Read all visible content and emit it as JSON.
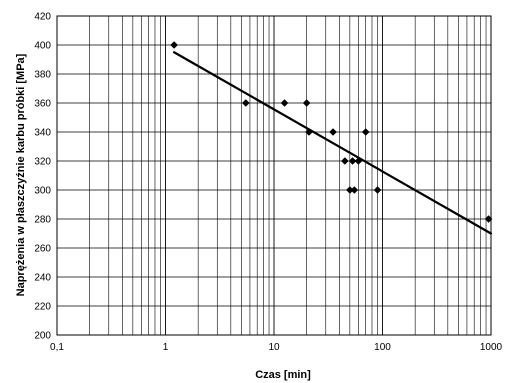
{
  "chart_data": {
    "type": "scatter",
    "title": "",
    "xlabel": "Czas [min]",
    "ylabel": "Naprężenia w płaszczyźnie karbu próbki [MPa]",
    "xscale": "log",
    "xlim": [
      0.1,
      1000
    ],
    "ylim": [
      200,
      420
    ],
    "x_ticks": [
      0.1,
      1,
      10,
      100,
      1000
    ],
    "x_tick_labels": [
      "0,1",
      "1",
      "10",
      "100",
      "1000"
    ],
    "y_ticks": [
      200,
      220,
      240,
      260,
      280,
      300,
      320,
      340,
      360,
      380,
      400,
      420
    ],
    "y_tick_labels": [
      "200",
      "220",
      "240",
      "260",
      "280",
      "300",
      "320",
      "340",
      "360",
      "380",
      "400",
      "420"
    ],
    "grid": true,
    "legend": "none",
    "colors": {
      "points": "#000000",
      "trend": "#000000",
      "grid": "#000000"
    },
    "series": [
      {
        "kind": "points",
        "marker": "diamond",
        "x": [
          1.2,
          5.5,
          12.5,
          20,
          21,
          35,
          45,
          50,
          53,
          55,
          60,
          70,
          90,
          950
        ],
        "y": [
          400,
          360,
          360,
          360,
          340,
          340,
          320,
          300,
          320,
          300,
          320,
          340,
          300,
          280
        ]
      },
      {
        "kind": "trendline",
        "x": [
          1.2,
          1000
        ],
        "y": [
          395,
          270
        ]
      }
    ]
  }
}
